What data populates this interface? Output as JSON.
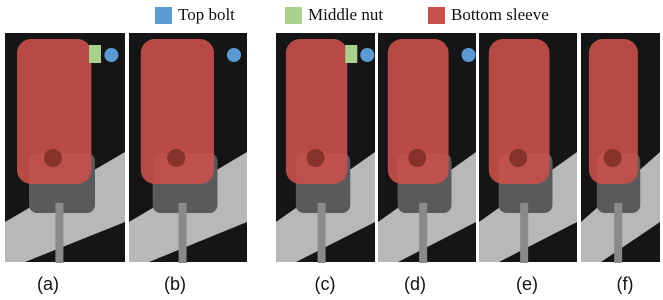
{
  "legend": [
    {
      "label": "Top bolt",
      "color": "#5b9bd5"
    },
    {
      "label": "Middle nut",
      "color": "#a9d18e"
    },
    {
      "label": "Bottom sleeve",
      "color": "#c9504a"
    }
  ],
  "panels": [
    {
      "label": "(a)"
    },
    {
      "label": "(b)"
    },
    {
      "label": "(c)"
    },
    {
      "label": "(d)"
    },
    {
      "label": "(e)"
    },
    {
      "label": "(f)"
    }
  ]
}
